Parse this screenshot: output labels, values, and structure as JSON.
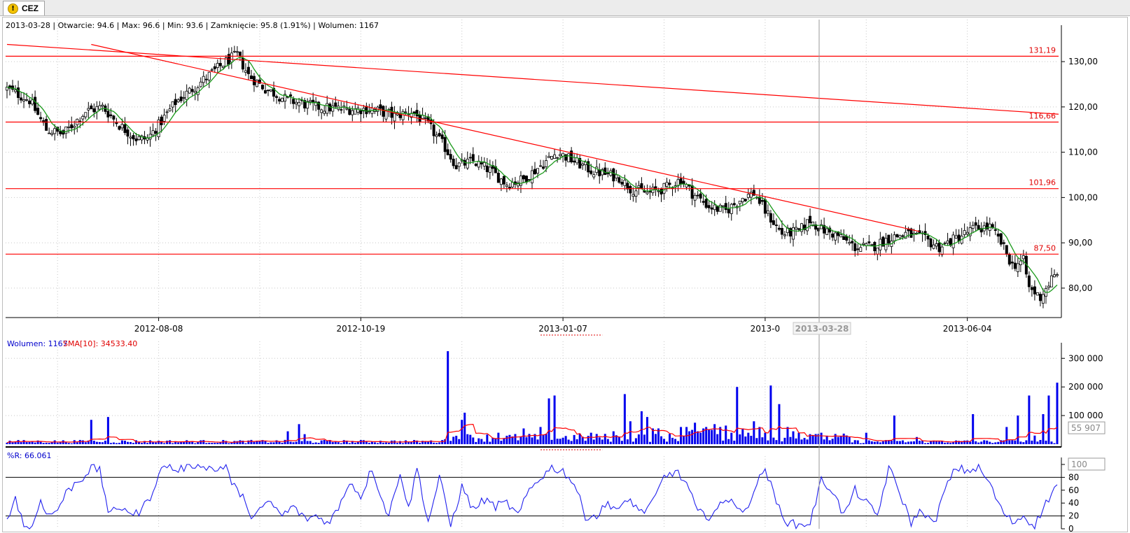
{
  "tab": {
    "label": "CEZ",
    "icon": "warning-icon"
  },
  "info_bar": {
    "text": "2013-03-28 | Otwarcie: 94.6 | Max: 96.6 | Min: 93.6 | Zamknięcie: 95.8 (1.91%)  | Wolumen: 1167"
  },
  "volume_header": {
    "volume_text": "Wolumen: 1167",
    "sma_text": "SMA[10]: 34533.40"
  },
  "wr_header": {
    "text": "%R: 66.061"
  },
  "crosshair": {
    "date_label": "2013-03-28",
    "volume_tag": "55 907",
    "wr_tag": "100"
  },
  "colors": {
    "up_candle": "#ffffff",
    "down_candle": "#000000",
    "sma_line": "#1a9a1a",
    "level_line": "#ff0000",
    "volume_bar": "#0000ee",
    "volume_sma": "#ff0000",
    "wr_line": "#2222ee",
    "grid": "#c8c8c8"
  },
  "chart_data": [
    {
      "type": "candlestick",
      "name": "price",
      "y_ticks": [
        "130,00",
        "120,00",
        "110,00",
        "100,00",
        "90,00",
        "80,00"
      ],
      "y_tick_values": [
        130,
        120,
        110,
        100,
        90,
        80
      ],
      "ylim": [
        73.5,
        136.5
      ],
      "x_ticks": [
        "2012-08-08",
        "2012-10-19",
        "2013-01-07",
        "2013-0",
        "2013-06-04"
      ],
      "x_tick_index": [
        54,
        126,
        198,
        270,
        342
      ],
      "n_bars": 375,
      "horizontal_levels": [
        {
          "value": 131.19,
          "label": "131,19"
        },
        {
          "value": 116.66,
          "label": "116,66"
        },
        {
          "value": 101.96,
          "label": "101,96"
        },
        {
          "value": 87.5,
          "label": "87,50"
        }
      ],
      "trend_lines": [
        {
          "from": [
            0,
            133.8
          ],
          "to": [
            375,
            118.4
          ]
        },
        {
          "from": [
            30,
            133.8
          ],
          "to": [
            325,
            92.5
          ]
        }
      ],
      "close_keypoints": [
        [
          0,
          124
        ],
        [
          8,
          121.5
        ],
        [
          14,
          115
        ],
        [
          20,
          114
        ],
        [
          28,
          119
        ],
        [
          34,
          120
        ],
        [
          40,
          116
        ],
        [
          46,
          113
        ],
        [
          50,
          113
        ],
        [
          54,
          116
        ],
        [
          60,
          121
        ],
        [
          70,
          126
        ],
        [
          78,
          130
        ],
        [
          82,
          131.5
        ],
        [
          86,
          127
        ],
        [
          92,
          124
        ],
        [
          100,
          121.5
        ],
        [
          110,
          120
        ],
        [
          120,
          119.5
        ],
        [
          130,
          119.5
        ],
        [
          138,
          118
        ],
        [
          144,
          119
        ],
        [
          150,
          116
        ],
        [
          156,
          111
        ],
        [
          160,
          107
        ],
        [
          166,
          108
        ],
        [
          172,
          106
        ],
        [
          178,
          103
        ],
        [
          184,
          104
        ],
        [
          190,
          107
        ],
        [
          196,
          110
        ],
        [
          202,
          108
        ],
        [
          208,
          106
        ],
        [
          214,
          105
        ],
        [
          218,
          104.5
        ],
        [
          222,
          102
        ],
        [
          228,
          101
        ],
        [
          234,
          102
        ],
        [
          240,
          104
        ],
        [
          244,
          101
        ],
        [
          250,
          98
        ],
        [
          256,
          97
        ],
        [
          262,
          100
        ],
        [
          266,
          101
        ],
        [
          270,
          97
        ],
        [
          276,
          92
        ],
        [
          282,
          92.5
        ],
        [
          286,
          95
        ],
        [
          290,
          93
        ],
        [
          296,
          91.5
        ],
        [
          302,
          89
        ],
        [
          308,
          89
        ],
        [
          314,
          91
        ],
        [
          320,
          92
        ],
        [
          326,
          91
        ],
        [
          332,
          89
        ],
        [
          338,
          91
        ],
        [
          344,
          93
        ],
        [
          350,
          93.5
        ],
        [
          354,
          90
        ],
        [
          358,
          85
        ],
        [
          362,
          86
        ],
        [
          364,
          80
        ],
        [
          368,
          78
        ],
        [
          372,
          82
        ],
        [
          375,
          83
        ]
      ]
    },
    {
      "type": "bar",
      "name": "volume",
      "y_ticks": [
        "300 000",
        "200 000",
        "100 000"
      ],
      "y_tick_values": [
        300000,
        200000,
        100000
      ],
      "ylim": [
        0,
        330000
      ],
      "baseline": 10000,
      "spikes": [
        [
          30,
          85000
        ],
        [
          36,
          95000
        ],
        [
          100,
          45000
        ],
        [
          104,
          70000
        ],
        [
          106,
          35000
        ],
        [
          157,
          325000
        ],
        [
          162,
          85000
        ],
        [
          163,
          110000
        ],
        [
          175,
          40000
        ],
        [
          184,
          55000
        ],
        [
          190,
          60000
        ],
        [
          193,
          160000
        ],
        [
          195,
          170000
        ],
        [
          208,
          40000
        ],
        [
          216,
          45000
        ],
        [
          222,
          80000
        ],
        [
          228,
          65000
        ],
        [
          232,
          55000
        ],
        [
          240,
          60000
        ],
        [
          242,
          50000
        ],
        [
          245,
          75000
        ],
        [
          249,
          60000
        ],
        [
          242,
          60000
        ],
        [
          252,
          70000
        ],
        [
          247,
          40000
        ],
        [
          244,
          50000
        ],
        [
          243,
          40000
        ],
        [
          248,
          45000
        ],
        [
          250,
          50000
        ],
        [
          245,
          60000
        ],
        [
          246,
          45000
        ],
        [
          251,
          50000
        ],
        [
          252,
          40000
        ],
        [
          253,
          35000
        ],
        [
          254,
          40000
        ],
        [
          243,
          45000
        ],
        [
          228,
          95000
        ],
        [
          220,
          175000
        ],
        [
          226,
          115000
        ],
        [
          230,
          55000
        ],
        [
          236,
          35000
        ],
        [
          240,
          40000
        ],
        [
          245,
          40000
        ],
        [
          248,
          55000
        ],
        [
          250,
          40000
        ],
        [
          252,
          55000
        ],
        [
          254,
          60000
        ],
        [
          256,
          65000
        ],
        [
          258,
          40000
        ],
        [
          260,
          200000
        ],
        [
          262,
          55000
        ],
        [
          264,
          40000
        ],
        [
          266,
          80000
        ],
        [
          268,
          60000
        ],
        [
          270,
          40000
        ],
        [
          272,
          205000
        ],
        [
          275,
          140000
        ],
        [
          278,
          60000
        ],
        [
          280,
          45000
        ],
        [
          282,
          40000
        ],
        [
          286,
          35000
        ],
        [
          290,
          40000
        ],
        [
          300,
          25000
        ],
        [
          306,
          40000
        ],
        [
          316,
          100000
        ],
        [
          324,
          25000
        ],
        [
          344,
          105000
        ],
        [
          356,
          60000
        ],
        [
          360,
          100000
        ],
        [
          364,
          170000
        ],
        [
          366,
          30000
        ],
        [
          369,
          105000
        ],
        [
          371,
          170000
        ],
        [
          374,
          215000
        ]
      ]
    },
    {
      "type": "line",
      "name": "%R",
      "y_ticks": [
        "100",
        "80",
        "60",
        "40",
        "20",
        "0"
      ],
      "y_tick_values": [
        100,
        80,
        60,
        40,
        20,
        0
      ],
      "ylim": [
        0,
        100
      ],
      "reference_lines": [
        80,
        20
      ],
      "keypoints": [
        [
          0,
          10
        ],
        [
          3,
          50
        ],
        [
          6,
          5
        ],
        [
          9,
          2
        ],
        [
          12,
          45
        ],
        [
          15,
          20
        ],
        [
          18,
          30
        ],
        [
          21,
          55
        ],
        [
          24,
          70
        ],
        [
          27,
          80
        ],
        [
          30,
          95
        ],
        [
          33,
          90
        ],
        [
          36,
          30
        ],
        [
          39,
          25
        ],
        [
          42,
          35
        ],
        [
          45,
          20
        ],
        [
          48,
          30
        ],
        [
          51,
          50
        ],
        [
          54,
          85
        ],
        [
          57,
          100
        ],
        [
          60,
          90
        ],
        [
          63,
          95
        ],
        [
          66,
          100
        ],
        [
          70,
          100
        ],
        [
          74,
          90
        ],
        [
          78,
          100
        ],
        [
          80,
          70
        ],
        [
          84,
          50
        ],
        [
          86,
          20
        ],
        [
          90,
          30
        ],
        [
          94,
          40
        ],
        [
          98,
          20
        ],
        [
          102,
          35
        ],
        [
          106,
          15
        ],
        [
          110,
          20
        ],
        [
          114,
          10
        ],
        [
          118,
          30
        ],
        [
          122,
          75
        ],
        [
          126,
          50
        ],
        [
          130,
          95
        ],
        [
          134,
          40
        ],
        [
          136,
          20
        ],
        [
          140,
          90
        ],
        [
          143,
          30
        ],
        [
          146,
          95
        ],
        [
          150,
          10
        ],
        [
          154,
          80
        ],
        [
          158,
          5
        ],
        [
          162,
          65
        ],
        [
          166,
          30
        ],
        [
          170,
          45
        ],
        [
          174,
          35
        ],
        [
          178,
          40
        ],
        [
          182,
          20
        ],
        [
          186,
          60
        ],
        [
          190,
          80
        ],
        [
          194,
          95
        ],
        [
          198,
          90
        ],
        [
          202,
          70
        ],
        [
          206,
          20
        ],
        [
          210,
          20
        ],
        [
          214,
          40
        ],
        [
          218,
          30
        ],
        [
          222,
          45
        ],
        [
          226,
          25
        ],
        [
          230,
          40
        ],
        [
          234,
          80
        ],
        [
          238,
          90
        ],
        [
          242,
          70
        ],
        [
          246,
          25
        ],
        [
          250,
          20
        ],
        [
          254,
          35
        ],
        [
          258,
          50
        ],
        [
          262,
          20
        ],
        [
          266,
          60
        ],
        [
          270,
          95
        ],
        [
          274,
          40
        ],
        [
          278,
          10
        ],
        [
          282,
          5
        ],
        [
          286,
          10
        ],
        [
          290,
          75
        ],
        [
          294,
          60
        ],
        [
          298,
          20
        ],
        [
          302,
          60
        ],
        [
          306,
          40
        ],
        [
          310,
          20
        ],
        [
          314,
          95
        ],
        [
          318,
          55
        ],
        [
          322,
          10
        ],
        [
          326,
          30
        ],
        [
          330,
          5
        ],
        [
          334,
          60
        ],
        [
          338,
          95
        ],
        [
          342,
          90
        ],
        [
          346,
          95
        ],
        [
          350,
          70
        ],
        [
          354,
          30
        ],
        [
          358,
          10
        ],
        [
          362,
          20
        ],
        [
          366,
          5
        ],
        [
          370,
          40
        ],
        [
          374,
          70
        ],
        [
          375,
          66
        ]
      ]
    }
  ]
}
